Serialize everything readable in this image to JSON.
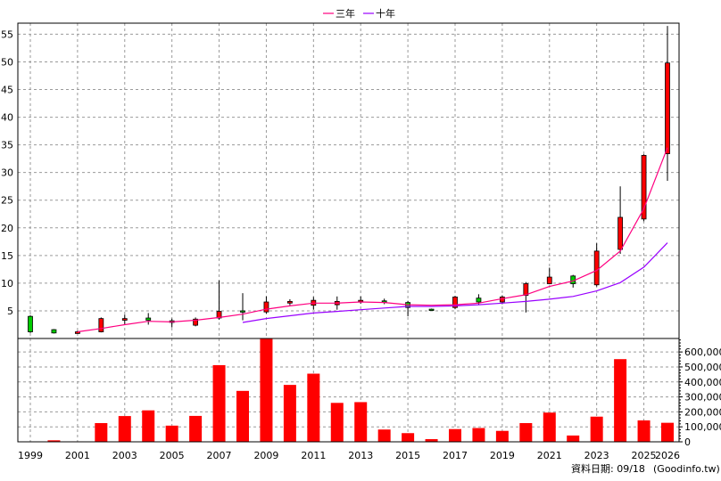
{
  "legend": {
    "ma3_label": "三年",
    "ma10_label": "十年"
  },
  "footer": {
    "date_label": "資料日期: 09/18",
    "source": "(Goodinfo.tw)"
  },
  "chart_data": [
    {
      "type": "candlestick",
      "x_tick_labels": [
        "1999",
        "2001",
        "2003",
        "2005",
        "2007",
        "2009",
        "2011",
        "2013",
        "2015",
        "2017",
        "2019",
        "2021",
        "2023",
        "2025",
        "2026"
      ],
      "y_ticks": [
        5,
        10,
        15,
        20,
        25,
        30,
        35,
        40,
        45,
        50,
        55
      ],
      "ylim": [
        0,
        57
      ],
      "grid": true,
      "legend_position": "top",
      "colors": {
        "up": "#ff0000",
        "down": "#00cc00",
        "ma3": "#ff0080",
        "ma10": "#9900ff",
        "wick": "#000000"
      },
      "candles": [
        {
          "year": 1999,
          "open": 4.0,
          "close": 1.2,
          "high": 4.2,
          "low": 1.0
        },
        {
          "year": 2000,
          "open": 1.6,
          "close": 1.0,
          "high": 1.7,
          "low": 0.9
        },
        {
          "year": 2001,
          "open": 0.9,
          "close": 1.2,
          "high": 1.4,
          "low": 0.9
        },
        {
          "year": 2002,
          "open": 1.2,
          "close": 3.6,
          "high": 3.8,
          "low": 1.1
        },
        {
          "year": 2003,
          "open": 3.3,
          "close": 3.6,
          "high": 4.3,
          "low": 2.6
        },
        {
          "year": 2004,
          "open": 3.7,
          "close": 3.3,
          "high": 4.6,
          "low": 2.5
        },
        {
          "year": 2005,
          "open": 3.2,
          "close": 2.9,
          "high": 3.6,
          "low": 2.0
        },
        {
          "year": 2006,
          "open": 2.4,
          "close": 3.5,
          "high": 3.8,
          "low": 2.2
        },
        {
          "year": 2007,
          "open": 3.7,
          "close": 4.9,
          "high": 10.5,
          "low": 3.4
        },
        {
          "year": 2008,
          "open": 5.0,
          "close": 4.9,
          "high": 8.2,
          "low": 3.3
        },
        {
          "year": 2009,
          "open": 4.8,
          "close": 6.6,
          "high": 7.6,
          "low": 4.5
        },
        {
          "year": 2010,
          "open": 6.4,
          "close": 6.7,
          "high": 7.1,
          "low": 6.0
        },
        {
          "year": 2011,
          "open": 6.0,
          "close": 6.9,
          "high": 7.5,
          "low": 5.2
        },
        {
          "year": 2012,
          "open": 6.1,
          "close": 6.7,
          "high": 7.6,
          "low": 5.2
        },
        {
          "year": 2013,
          "open": 6.7,
          "close": 6.9,
          "high": 7.6,
          "low": 6.3
        },
        {
          "year": 2014,
          "open": 6.8,
          "close": 6.6,
          "high": 7.2,
          "low": 6.2
        },
        {
          "year": 2015,
          "open": 6.5,
          "close": 5.6,
          "high": 6.8,
          "low": 4.0
        },
        {
          "year": 2016,
          "open": 5.3,
          "close": 5.2,
          "high": 5.4,
          "low": 5.0
        },
        {
          "year": 2017,
          "open": 5.6,
          "close": 7.5,
          "high": 7.7,
          "low": 5.3
        },
        {
          "year": 2018,
          "open": 7.3,
          "close": 6.6,
          "high": 8.0,
          "low": 6.2
        },
        {
          "year": 2019,
          "open": 6.6,
          "close": 7.5,
          "high": 7.8,
          "low": 6.2
        },
        {
          "year": 2020,
          "open": 7.8,
          "close": 9.9,
          "high": 10.2,
          "low": 4.7
        },
        {
          "year": 2021,
          "open": 9.9,
          "close": 11.1,
          "high": 12.8,
          "low": 9.8
        },
        {
          "year": 2022,
          "open": 11.3,
          "close": 9.9,
          "high": 11.5,
          "low": 9.2
        },
        {
          "year": 2023,
          "open": 9.7,
          "close": 15.8,
          "high": 17.2,
          "low": 9.4
        },
        {
          "year": 2024,
          "open": 16.1,
          "close": 21.9,
          "high": 27.5,
          "low": 15.3
        },
        {
          "year": 2025,
          "open": 21.6,
          "close": 33.1,
          "high": 33.3,
          "low": 21.2
        },
        {
          "year": 2026,
          "open": 33.4,
          "close": 49.8,
          "high": 56.5,
          "low": 28.5
        }
      ],
      "ma3": [
        {
          "year": 2001,
          "value": 1.2
        },
        {
          "year": 2002,
          "value": 1.8
        },
        {
          "year": 2003,
          "value": 2.5
        },
        {
          "year": 2004,
          "value": 3.1
        },
        {
          "year": 2005,
          "value": 3.0
        },
        {
          "year": 2006,
          "value": 3.3
        },
        {
          "year": 2007,
          "value": 3.8
        },
        {
          "year": 2008,
          "value": 4.4
        },
        {
          "year": 2009,
          "value": 5.3
        },
        {
          "year": 2010,
          "value": 5.9
        },
        {
          "year": 2011,
          "value": 6.4
        },
        {
          "year": 2012,
          "value": 6.4
        },
        {
          "year": 2013,
          "value": 6.6
        },
        {
          "year": 2014,
          "value": 6.5
        },
        {
          "year": 2015,
          "value": 6.1
        },
        {
          "year": 2016,
          "value": 6.0
        },
        {
          "year": 2017,
          "value": 6.1
        },
        {
          "year": 2018,
          "value": 6.4
        },
        {
          "year": 2019,
          "value": 7.2
        },
        {
          "year": 2020,
          "value": 7.9
        },
        {
          "year": 2021,
          "value": 9.4
        },
        {
          "year": 2022,
          "value": 10.4
        },
        {
          "year": 2023,
          "value": 12.3
        },
        {
          "year": 2024,
          "value": 15.8
        },
        {
          "year": 2025,
          "value": 23.5
        },
        {
          "year": 2026,
          "value": 34.5
        }
      ],
      "ma10": [
        {
          "year": 2008,
          "value": 2.9
        },
        {
          "year": 2009,
          "value": 3.6
        },
        {
          "year": 2010,
          "value": 4.1
        },
        {
          "year": 2011,
          "value": 4.6
        },
        {
          "year": 2012,
          "value": 4.9
        },
        {
          "year": 2013,
          "value": 5.2
        },
        {
          "year": 2014,
          "value": 5.5
        },
        {
          "year": 2015,
          "value": 5.8
        },
        {
          "year": 2016,
          "value": 5.8
        },
        {
          "year": 2017,
          "value": 5.9
        },
        {
          "year": 2018,
          "value": 6.1
        },
        {
          "year": 2019,
          "value": 6.4
        },
        {
          "year": 2020,
          "value": 6.7
        },
        {
          "year": 2021,
          "value": 7.1
        },
        {
          "year": 2022,
          "value": 7.6
        },
        {
          "year": 2023,
          "value": 8.6
        },
        {
          "year": 2024,
          "value": 10.1
        },
        {
          "year": 2025,
          "value": 12.9
        },
        {
          "year": 2026,
          "value": 17.3
        }
      ]
    },
    {
      "type": "bar",
      "y_tick_labels": [
        "0",
        "100,000",
        "200,000",
        "300,000",
        "400,000",
        "500,000",
        "600,000"
      ],
      "ylim": [
        0,
        690000
      ],
      "grid": true,
      "color": "#ff0000",
      "bars": [
        {
          "year": 1999,
          "value": 2000
        },
        {
          "year": 2000,
          "value": 10000
        },
        {
          "year": 2001,
          "value": 3000
        },
        {
          "year": 2002,
          "value": 125000
        },
        {
          "year": 2003,
          "value": 172000
        },
        {
          "year": 2004,
          "value": 210000
        },
        {
          "year": 2005,
          "value": 108000
        },
        {
          "year": 2006,
          "value": 173000
        },
        {
          "year": 2007,
          "value": 512000
        },
        {
          "year": 2008,
          "value": 340000
        },
        {
          "year": 2009,
          "value": 688000
        },
        {
          "year": 2010,
          "value": 380000
        },
        {
          "year": 2011,
          "value": 455000
        },
        {
          "year": 2012,
          "value": 260000
        },
        {
          "year": 2013,
          "value": 265000
        },
        {
          "year": 2014,
          "value": 82000
        },
        {
          "year": 2015,
          "value": 58000
        },
        {
          "year": 2016,
          "value": 18000
        },
        {
          "year": 2017,
          "value": 85000
        },
        {
          "year": 2018,
          "value": 92000
        },
        {
          "year": 2019,
          "value": 73000
        },
        {
          "year": 2020,
          "value": 125000
        },
        {
          "year": 2021,
          "value": 195000
        },
        {
          "year": 2022,
          "value": 42000
        },
        {
          "year": 2023,
          "value": 168000
        },
        {
          "year": 2024,
          "value": 552000
        },
        {
          "year": 2025,
          "value": 143000
        },
        {
          "year": 2026,
          "value": 127000
        }
      ]
    }
  ]
}
